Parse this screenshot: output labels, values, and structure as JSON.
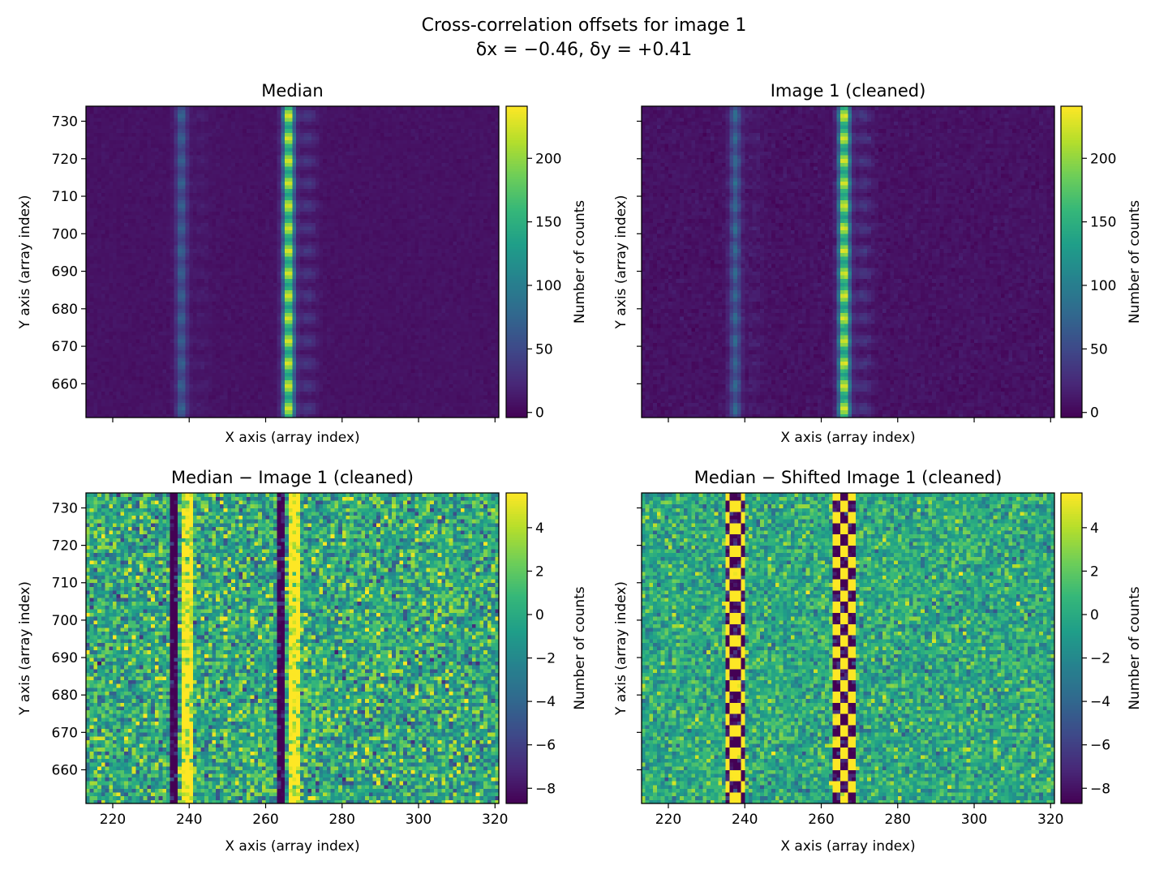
{
  "suptitle": {
    "line1": "Cross-correlation offsets for image 1",
    "line2": "δx = −0.46, δy = +0.41"
  },
  "colors": {
    "viridis": [
      "#440154",
      "#482878",
      "#3e4989",
      "#31688e",
      "#26828e",
      "#1f9e89",
      "#35b779",
      "#6ece58",
      "#b5de2b",
      "#fde725"
    ],
    "background": "#ffffff"
  },
  "chart_data": [
    {
      "type": "heatmap",
      "title": "Median",
      "xlabel": "X axis (array index)",
      "ylabel": "Y axis (array index)",
      "xlim": [
        213,
        321
      ],
      "ylim": [
        651,
        734
      ],
      "x_ticks": [
        220,
        240,
        260,
        280,
        300,
        320
      ],
      "x_ticklabels_shown": false,
      "y_ticks": [
        660,
        670,
        680,
        690,
        700,
        710,
        720,
        730
      ],
      "y_ticklabels_shown": true,
      "colorbar": {
        "label": "Number of counts",
        "range": [
          -4,
          241
        ],
        "ticks": [
          0,
          50,
          100,
          150,
          200
        ]
      },
      "features": {
        "columns_x": [
          238,
          266
        ],
        "column_peak_values": [
          70,
          241
        ],
        "spot_spacing_y": 6,
        "background": 8,
        "noise": 3
      },
      "cmap": "viridis"
    },
    {
      "type": "heatmap",
      "title": "Image 1 (cleaned)",
      "xlabel": "X axis (array index)",
      "ylabel": "Y axis (array index)",
      "xlim": [
        213,
        321
      ],
      "ylim": [
        651,
        734
      ],
      "x_ticks": [
        220,
        240,
        260,
        280,
        300,
        320
      ],
      "x_ticklabels_shown": false,
      "y_ticks": [
        660,
        670,
        680,
        690,
        700,
        710,
        720,
        730
      ],
      "y_ticklabels_shown": false,
      "colorbar": {
        "label": "Number of counts",
        "range": [
          -4,
          241
        ],
        "ticks": [
          0,
          50,
          100,
          150,
          200
        ]
      },
      "features": {
        "columns_x": [
          237.5,
          266
        ],
        "column_peak_values": [
          75,
          241
        ],
        "spot_spacing_y": 6,
        "background": 8,
        "noise": 5
      },
      "cmap": "viridis"
    },
    {
      "type": "heatmap",
      "title": "Median − Image 1 (cleaned)",
      "xlabel": "X axis (array index)",
      "ylabel": "Y axis (array index)",
      "xlim": [
        213,
        321
      ],
      "ylim": [
        651,
        734
      ],
      "x_ticks": [
        220,
        240,
        260,
        280,
        300,
        320
      ],
      "x_ticklabels_shown": true,
      "y_ticks": [
        660,
        670,
        680,
        690,
        700,
        710,
        720,
        730
      ],
      "y_ticklabels_shown": true,
      "colorbar": {
        "label": "Number of counts",
        "range": [
          -8.7,
          5.6
        ],
        "ticks": [
          -8,
          -6,
          -4,
          -2,
          0,
          2,
          4
        ]
      },
      "features": {
        "columns_x": [
          238,
          266
        ],
        "pattern": "dipole: negative left, positive right",
        "noise": 3.5
      },
      "cmap": "viridis"
    },
    {
      "type": "heatmap",
      "title": "Median − Shifted Image 1 (cleaned)",
      "xlabel": "X axis (array index)",
      "ylabel": "Y axis (array index)",
      "xlim": [
        213,
        321
      ],
      "ylim": [
        651,
        734
      ],
      "x_ticks": [
        220,
        240,
        260,
        280,
        300,
        320
      ],
      "x_ticklabels_shown": true,
      "y_ticks": [
        660,
        670,
        680,
        690,
        700,
        710,
        720,
        730
      ],
      "y_ticklabels_shown": false,
      "colorbar": {
        "label": "Number of counts",
        "range": [
          -8.7,
          5.6
        ],
        "ticks": [
          -8,
          -6,
          -4,
          -2,
          0,
          2,
          4
        ]
      },
      "features": {
        "columns_x": [
          237.5,
          266
        ],
        "pattern": "alternating positive/negative spots",
        "noise": 2.5
      },
      "cmap": "viridis"
    }
  ]
}
